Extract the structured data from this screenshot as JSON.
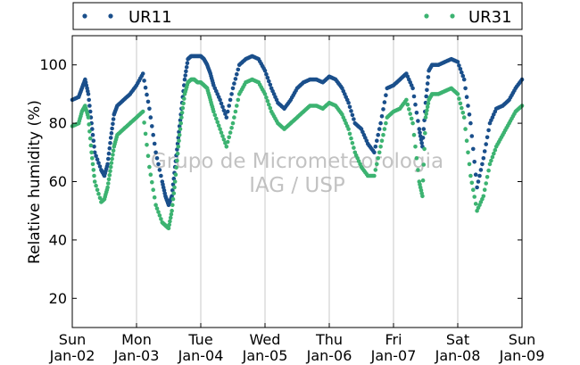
{
  "chart_data": {
    "type": "scatter",
    "ylabel": "Relative humidity (%)",
    "xlabel": "",
    "ylim": [
      10,
      110
    ],
    "xlim": [
      0,
      7
    ],
    "yticks": [
      20,
      40,
      60,
      80,
      100
    ],
    "xticks": [
      {
        "day": "Sun",
        "date": "Jan-02"
      },
      {
        "day": "Mon",
        "date": "Jan-03"
      },
      {
        "day": "Tue",
        "date": "Jan-04"
      },
      {
        "day": "Wed",
        "date": "Jan-05"
      },
      {
        "day": "Thu",
        "date": "Jan-06"
      },
      {
        "day": "Fri",
        "date": "Jan-07"
      },
      {
        "day": "Sat",
        "date": "Jan-08"
      },
      {
        "day": "Sun",
        "date": "Jan-09"
      }
    ],
    "grid": "vertical",
    "legend": "top",
    "watermark": [
      "Grupo de Micrometeorologia",
      "IAG / USP"
    ],
    "series": [
      {
        "name": "UR11",
        "color": "#1a4f8b",
        "x": [
          0.0,
          0.1,
          0.15,
          0.2,
          0.25,
          0.3,
          0.35,
          0.45,
          0.5,
          0.55,
          0.6,
          0.65,
          0.7,
          0.8,
          0.9,
          1.0,
          1.1,
          1.2,
          1.3,
          1.4,
          1.45,
          1.5,
          1.55,
          1.6,
          1.65,
          1.7,
          1.75,
          1.8,
          1.85,
          1.9,
          1.95,
          2.0,
          2.05,
          2.1,
          2.15,
          2.2,
          2.3,
          2.4,
          2.5,
          2.6,
          2.7,
          2.8,
          2.9,
          3.0,
          3.1,
          3.2,
          3.3,
          3.4,
          3.5,
          3.6,
          3.7,
          3.8,
          3.9,
          4.0,
          4.1,
          4.2,
          4.3,
          4.4,
          4.5,
          4.6,
          4.7,
          4.8,
          4.9,
          5.0,
          5.1,
          5.2,
          5.3,
          5.4,
          5.45,
          5.5,
          5.55,
          5.6,
          5.7,
          5.8,
          5.9,
          6.0,
          6.1,
          6.2,
          6.3,
          6.4,
          6.5,
          6.6,
          6.7,
          6.8,
          6.9,
          7.0
        ],
        "y": [
          88,
          89,
          92,
          95,
          90,
          80,
          70,
          64,
          62,
          66,
          75,
          83,
          86,
          88,
          90,
          93,
          97,
          85,
          70,
          60,
          55,
          52,
          55,
          65,
          75,
          85,
          95,
          102,
          103,
          103,
          103,
          103,
          102,
          100,
          97,
          93,
          88,
          82,
          92,
          100,
          102,
          103,
          102,
          98,
          92,
          87,
          85,
          88,
          92,
          94,
          95,
          95,
          94,
          96,
          95,
          92,
          87,
          80,
          78,
          73,
          70,
          80,
          92,
          93,
          95,
          97,
          92,
          78,
          72,
          87,
          98,
          100,
          100,
          101,
          102,
          101,
          95,
          80,
          58,
          68,
          80,
          85,
          86,
          88,
          92,
          95
        ]
      },
      {
        "name": "UR31",
        "color": "#3cb371",
        "x": [
          0.0,
          0.1,
          0.15,
          0.2,
          0.25,
          0.3,
          0.35,
          0.45,
          0.5,
          0.55,
          0.6,
          0.65,
          0.7,
          0.8,
          0.9,
          1.0,
          1.1,
          1.2,
          1.3,
          1.4,
          1.45,
          1.5,
          1.55,
          1.6,
          1.65,
          1.7,
          1.75,
          1.8,
          1.85,
          1.9,
          1.95,
          2.0,
          2.05,
          2.1,
          2.15,
          2.2,
          2.3,
          2.4,
          2.5,
          2.6,
          2.7,
          2.8,
          2.9,
          3.0,
          3.1,
          3.2,
          3.3,
          3.4,
          3.5,
          3.6,
          3.7,
          3.8,
          3.9,
          4.0,
          4.1,
          4.2,
          4.3,
          4.4,
          4.5,
          4.6,
          4.7,
          4.8,
          4.9,
          5.0,
          5.1,
          5.2,
          5.3,
          5.4,
          5.45,
          5.5,
          5.55,
          5.6,
          5.7,
          5.8,
          5.9,
          6.0,
          6.1,
          6.2,
          6.3,
          6.4,
          6.5,
          6.6,
          6.7,
          6.8,
          6.9,
          7.0
        ],
        "y": [
          79,
          80,
          84,
          86,
          82,
          70,
          60,
          53,
          54,
          58,
          65,
          72,
          76,
          78,
          80,
          82,
          84,
          65,
          52,
          46,
          45,
          44,
          50,
          60,
          72,
          82,
          90,
          94,
          95,
          95,
          94,
          94,
          93,
          92,
          88,
          84,
          78,
          72,
          80,
          90,
          94,
          95,
          94,
          90,
          84,
          80,
          78,
          80,
          82,
          84,
          86,
          86,
          85,
          87,
          86,
          83,
          78,
          70,
          65,
          62,
          62,
          72,
          82,
          84,
          85,
          88,
          80,
          60,
          55,
          82,
          88,
          90,
          90,
          91,
          92,
          90,
          82,
          62,
          50,
          55,
          66,
          72,
          76,
          80,
          84,
          86
        ]
      }
    ]
  }
}
